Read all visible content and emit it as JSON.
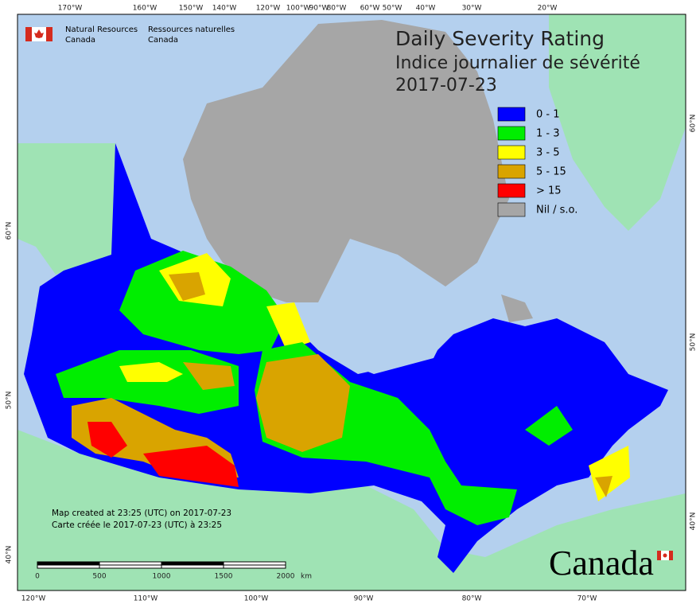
{
  "header": {
    "agency_en": [
      "Natural Resources",
      "Canada"
    ],
    "agency_fr": [
      "Ressources naturelles",
      "Canada"
    ]
  },
  "title": {
    "line1": "Daily Severity Rating",
    "line2": "Indice journalier de sévérité",
    "date": "2017-07-23"
  },
  "legend": [
    {
      "label": "0 - 1",
      "color": "#0000ff"
    },
    {
      "label": "1 - 3",
      "color": "#00ee00"
    },
    {
      "label": "3 - 5",
      "color": "#ffff00"
    },
    {
      "label": "5 - 15",
      "color": "#d9a400"
    },
    {
      "label": "> 15",
      "color": "#ff0000"
    },
    {
      "label": "Nil / s.o.",
      "color": "#a6a6a6"
    }
  ],
  "graticule": {
    "top": [
      "170°W",
      "160°W",
      "150°W",
      "140°W",
      "120°W",
      "100°W",
      "90°W",
      "80°W",
      "60°W",
      "50°W",
      "40°W",
      "30°W",
      "20°W"
    ],
    "bottom": [
      "120°W",
      "110°W",
      "100°W",
      "90°W",
      "80°W",
      "70°W"
    ],
    "left": [
      "60°N",
      "50°N",
      "40°N"
    ],
    "right": [
      "60°N",
      "50°N",
      "40°N"
    ]
  },
  "notes": [
    "Map created at 23:25 (UTC) on 2017-07-23",
    "Carte créée le 2017-07-23 (UTC) à 23:25"
  ],
  "scale_bar": {
    "labels": [
      "0",
      "500",
      "1000",
      "1500",
      "2000"
    ],
    "unit": "km"
  },
  "wordmark": "Canada"
}
